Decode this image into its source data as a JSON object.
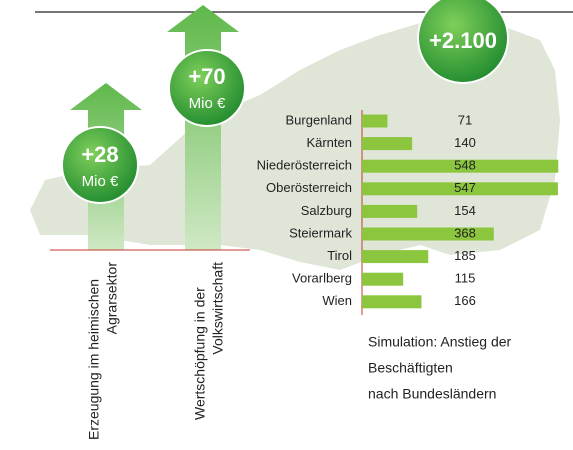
{
  "chart_data": {
    "type": "hbar",
    "categories": [
      "Burgenland",
      "Kärnten",
      "Niederösterreich",
      "Oberösterreich",
      "Salzburg",
      "Steiermark",
      "Tirol",
      "Vorarlberg",
      "Wien"
    ],
    "values": [
      71,
      140,
      548,
      547,
      154,
      368,
      185,
      115,
      166
    ],
    "color": "#8cc63f",
    "xlim": [
      0,
      550
    ],
    "caption": [
      "Simulation: Anstieg der",
      "Beschäftigten",
      "nach Bundesländern"
    ]
  },
  "infographic": {
    "bubbles": [
      {
        "value": "+28",
        "unit": "Mio €"
      },
      {
        "value": "+70",
        "unit": "Mio €"
      },
      {
        "value": "+2.100"
      }
    ],
    "labels": [
      [
        "Erzeugung im heimischen",
        "Agrarsektor"
      ],
      [
        "Wertschöpfung in der",
        "Volkswirtschaft"
      ]
    ]
  }
}
